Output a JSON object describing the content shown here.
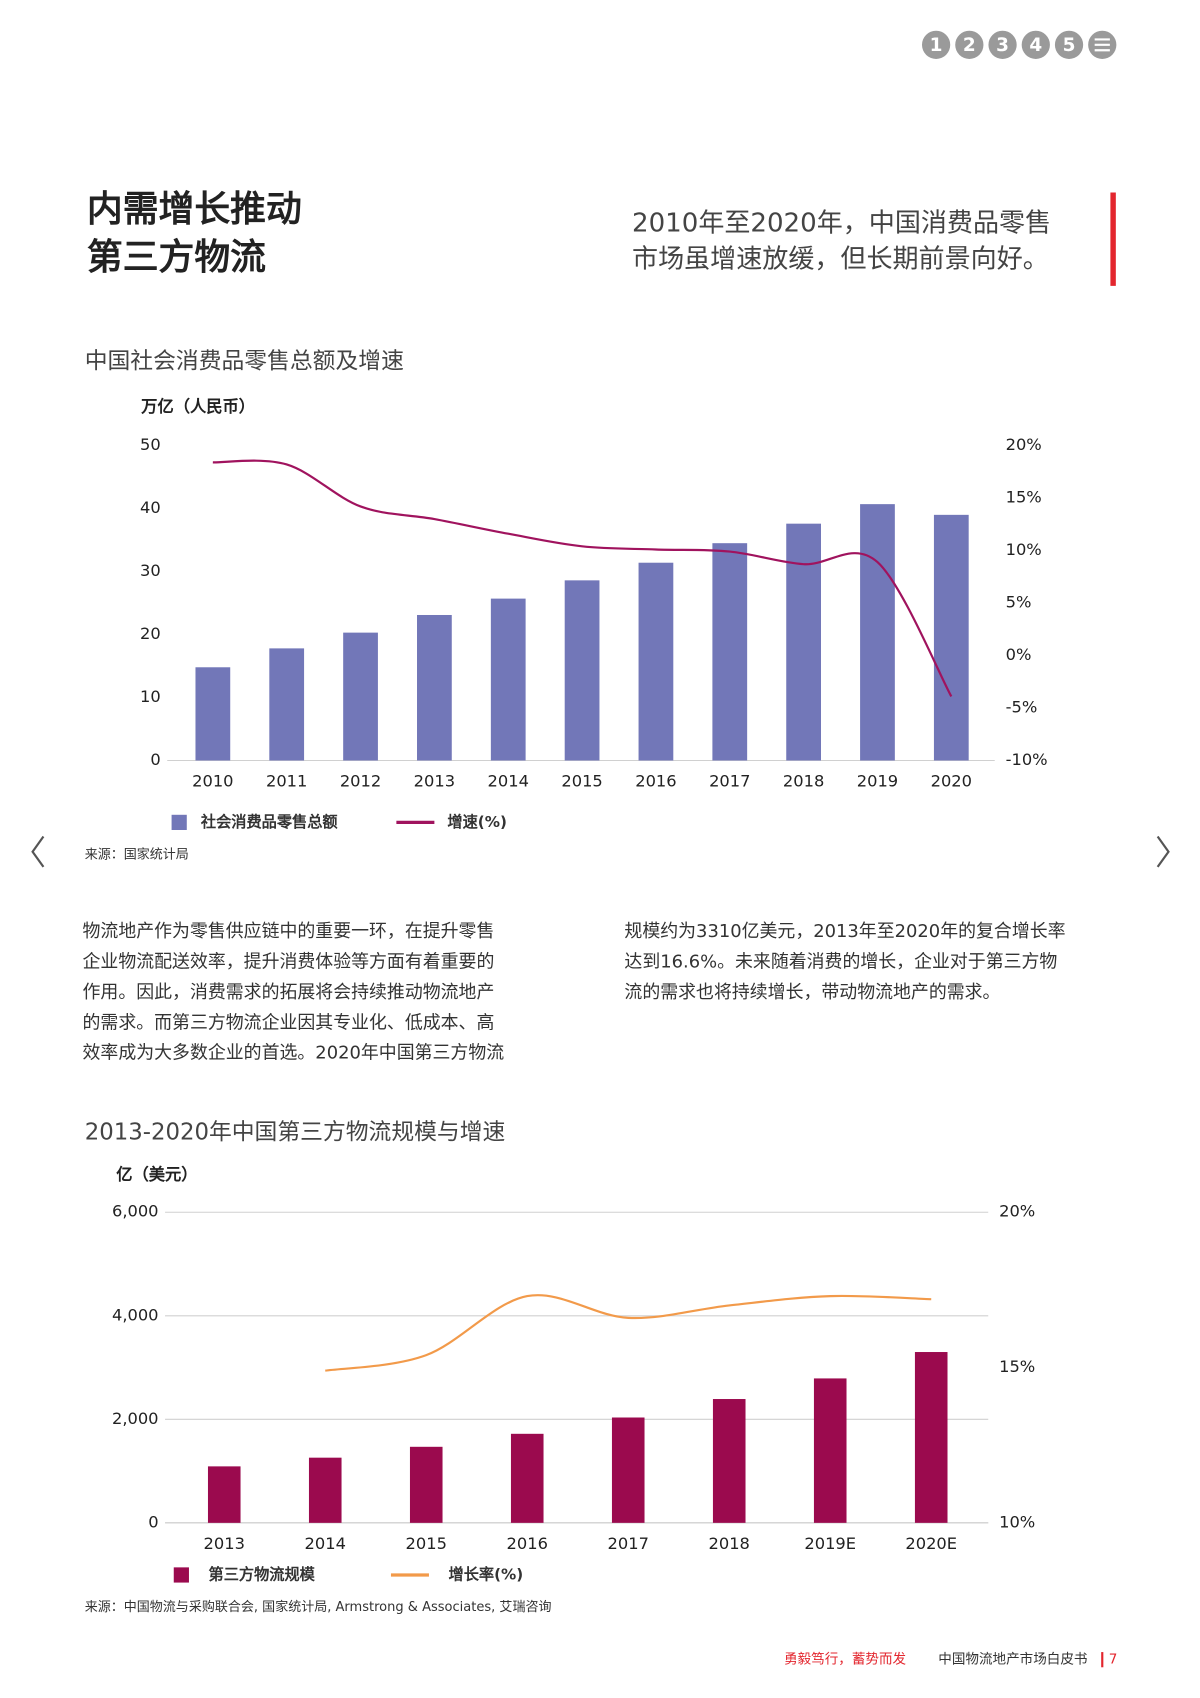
{
  "nav": [
    "1",
    "2",
    "3",
    "4",
    "5"
  ],
  "header": {
    "title": [
      "内需增长推动",
      "第三方物流"
    ],
    "subtitle": [
      "2010年至2020年，中国消费品零售",
      "市场虽增速放缓，但长期前景向好。"
    ]
  },
  "body": {
    "left_column": [
      "物流地产作为零售供应链中的重要一环，在提升零售",
      "企业物流配送效率，提升消费体验等方面有着重要的",
      "作用。因此，消费需求的拓展将会持续推动物流地产",
      "的需求。而第三方物流企业因其专业化、低成本、高",
      "效率成为大多数企业的首选。2020年中国第三方物流"
    ],
    "right_column": [
      "规模约为3310亿美元，2013年至2020年的复合增长率",
      "达到16.6%。未来随着消费的增长，企业对于第三方物",
      "流的需求也将持续增长，带动物流地产的需求。"
    ]
  },
  "chart_data": [
    {
      "type": "combo",
      "title": "中国社会消费品零售总额及增速",
      "y_label": "万亿（人民币）",
      "source": "来源：国家统计局",
      "categories": [
        "2010",
        "2011",
        "2012",
        "2013",
        "2014",
        "2015",
        "2016",
        "2017",
        "2018",
        "2019",
        "2020"
      ],
      "series": [
        {
          "name": "社会消费品零售总额",
          "type": "bar",
          "color": "#7277b8",
          "values": [
            14.8,
            17.8,
            20.3,
            23.1,
            25.7,
            28.6,
            31.4,
            34.5,
            37.6,
            40.7,
            39.0
          ]
        },
        {
          "name": "增速(%)",
          "type": "line",
          "axis": "y2",
          "color": "#a0135e",
          "values": [
            18.4,
            18.2,
            14.2,
            13.0,
            11.6,
            10.4,
            10.1,
            9.9,
            8.7,
            8.9,
            -3.9
          ]
        }
      ],
      "ylim": [
        0,
        50
      ],
      "yticks": [
        0,
        10,
        20,
        30,
        40,
        50
      ],
      "y2lim": [
        -10,
        20
      ],
      "y2ticks": [
        {
          "value": -10,
          "label": "-10%"
        },
        {
          "value": -5,
          "label": "-5%"
        },
        {
          "value": 0,
          "label": "0%"
        },
        {
          "value": 5,
          "label": "5%"
        },
        {
          "value": 10,
          "label": "10%"
        },
        {
          "value": 15,
          "label": "15%"
        },
        {
          "value": 20,
          "label": "20%"
        }
      ],
      "grid": false
    },
    {
      "type": "combo",
      "title": "2013-2020年中国第三方物流规模与增速",
      "y_label": "亿（美元）",
      "source": "来源：中国物流与采购联合会, 国家统计局, Armstrong & Associates, 艾瑞咨询",
      "categories": [
        "2013",
        "2014",
        "2015",
        "2016",
        "2017",
        "2018",
        "2019E",
        "2020E"
      ],
      "series": [
        {
          "name": "第三方物流规模",
          "type": "bar",
          "color": "#9b0a4e",
          "values": [
            1091,
            1259,
            1469,
            1720,
            2035,
            2392,
            2790,
            3300
          ]
        },
        {
          "name": "增长率(%)",
          "type": "line",
          "axis": "y2",
          "color": "#f29a4a",
          "values": [
            null,
            14.9,
            15.4,
            17.3,
            16.6,
            17.0,
            17.3,
            17.2
          ]
        }
      ],
      "ylim": [
        0,
        6000
      ],
      "yticks": [
        0,
        {
          "value": 2000,
          "label": "2,000"
        },
        {
          "value": 4000,
          "label": "4,000"
        },
        {
          "value": 6000,
          "label": "6,000"
        }
      ],
      "y2lim": [
        10,
        20
      ],
      "y2ticks": [
        {
          "value": 10,
          "label": "10%"
        },
        {
          "value": 15,
          "label": "15%"
        },
        {
          "value": 20,
          "label": "20%"
        }
      ],
      "grid": true
    }
  ],
  "footer": {
    "tagline": "勇毅笃行，蓄势而发",
    "title": "中国物流地产市场白皮书",
    "page": "7"
  }
}
